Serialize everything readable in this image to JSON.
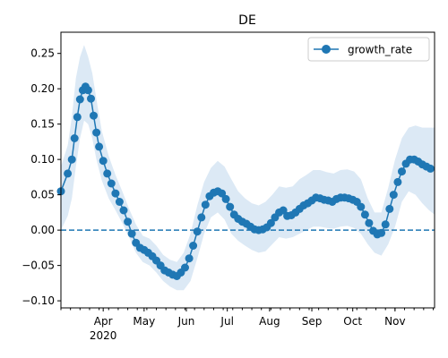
{
  "chart_data": {
    "type": "line",
    "title": "DE",
    "xlabel": "",
    "ylabel": "",
    "x_range": [
      "2020-03-01",
      "2020-11-30"
    ],
    "ylim": [
      -0.11,
      0.28
    ],
    "y_ticks": [
      -0.1,
      -0.05,
      0.0,
      0.05,
      0.1,
      0.15,
      0.2,
      0.25
    ],
    "y_tick_labels": [
      "−0.10",
      "−0.05",
      "0.00",
      "0.05",
      "0.10",
      "0.15",
      "0.20",
      "0.25"
    ],
    "x_major_ticks": [
      {
        "date": "2020-04-01",
        "label": "Apr"
      },
      {
        "date": "2020-05-01",
        "label": "May"
      },
      {
        "date": "2020-06-01",
        "label": "Jun"
      },
      {
        "date": "2020-07-01",
        "label": "Jul"
      },
      {
        "date": "2020-08-01",
        "label": "Aug"
      },
      {
        "date": "2020-09-01",
        "label": "Sep"
      },
      {
        "date": "2020-10-01",
        "label": "Oct"
      },
      {
        "date": "2020-11-01",
        "label": "Nov"
      }
    ],
    "x_year_label": "2020",
    "grid": false,
    "legend": {
      "position": "upper-right",
      "entries": [
        "growth_rate"
      ]
    },
    "colors": {
      "series": "#1f77b4",
      "band": "#dce9f5",
      "zero_line": "#1f77b4"
    },
    "reference_line": {
      "y": 0,
      "style": "dashed"
    },
    "series": [
      {
        "name": "growth_rate",
        "marker": "circle",
        "points": [
          [
            "2020-03-01",
            0.055
          ],
          [
            "2020-03-06",
            0.08
          ],
          [
            "2020-03-09",
            0.1
          ],
          [
            "2020-03-11",
            0.13
          ],
          [
            "2020-03-13",
            0.16
          ],
          [
            "2020-03-15",
            0.185
          ],
          [
            "2020-03-17",
            0.198
          ],
          [
            "2020-03-19",
            0.203
          ],
          [
            "2020-03-21",
            0.198
          ],
          [
            "2020-03-23",
            0.186
          ],
          [
            "2020-03-25",
            0.162
          ],
          [
            "2020-03-27",
            0.138
          ],
          [
            "2020-03-29",
            0.118
          ],
          [
            "2020-04-01",
            0.098
          ],
          [
            "2020-04-04",
            0.08
          ],
          [
            "2020-04-07",
            0.066
          ],
          [
            "2020-04-10",
            0.052
          ],
          [
            "2020-04-13",
            0.04
          ],
          [
            "2020-04-16",
            0.028
          ],
          [
            "2020-04-19",
            0.012
          ],
          [
            "2020-04-22",
            -0.005
          ],
          [
            "2020-04-25",
            -0.018
          ],
          [
            "2020-04-28",
            -0.025
          ],
          [
            "2020-05-01",
            -0.028
          ],
          [
            "2020-05-04",
            -0.032
          ],
          [
            "2020-05-07",
            -0.037
          ],
          [
            "2020-05-10",
            -0.043
          ],
          [
            "2020-05-13",
            -0.05
          ],
          [
            "2020-05-16",
            -0.057
          ],
          [
            "2020-05-19",
            -0.06
          ],
          [
            "2020-05-22",
            -0.063
          ],
          [
            "2020-05-25",
            -0.065
          ],
          [
            "2020-05-28",
            -0.06
          ],
          [
            "2020-05-31",
            -0.053
          ],
          [
            "2020-06-03",
            -0.04
          ],
          [
            "2020-06-06",
            -0.022
          ],
          [
            "2020-06-09",
            -0.002
          ],
          [
            "2020-06-12",
            0.018
          ],
          [
            "2020-06-15",
            0.036
          ],
          [
            "2020-06-18",
            0.048
          ],
          [
            "2020-06-21",
            0.053
          ],
          [
            "2020-06-24",
            0.055
          ],
          [
            "2020-06-27",
            0.052
          ],
          [
            "2020-06-30",
            0.044
          ],
          [
            "2020-07-03",
            0.033
          ],
          [
            "2020-07-06",
            0.022
          ],
          [
            "2020-07-09",
            0.016
          ],
          [
            "2020-07-12",
            0.012
          ],
          [
            "2020-07-15",
            0.009
          ],
          [
            "2020-07-18",
            0.005
          ],
          [
            "2020-07-21",
            0.001
          ],
          [
            "2020-07-24",
            0.0
          ],
          [
            "2020-07-27",
            0.001
          ],
          [
            "2020-07-30",
            0.004
          ],
          [
            "2020-08-02",
            0.01
          ],
          [
            "2020-08-05",
            0.018
          ],
          [
            "2020-08-08",
            0.025
          ],
          [
            "2020-08-11",
            0.028
          ],
          [
            "2020-08-14",
            0.02
          ],
          [
            "2020-08-17",
            0.021
          ],
          [
            "2020-08-20",
            0.025
          ],
          [
            "2020-08-23",
            0.03
          ],
          [
            "2020-08-26",
            0.035
          ],
          [
            "2020-08-29",
            0.038
          ],
          [
            "2020-09-01",
            0.042
          ],
          [
            "2020-09-04",
            0.046
          ],
          [
            "2020-09-07",
            0.045
          ],
          [
            "2020-09-10",
            0.043
          ],
          [
            "2020-09-13",
            0.042
          ],
          [
            "2020-09-16",
            0.04
          ],
          [
            "2020-09-19",
            0.044
          ],
          [
            "2020-09-22",
            0.046
          ],
          [
            "2020-09-25",
            0.046
          ],
          [
            "2020-09-28",
            0.045
          ],
          [
            "2020-10-01",
            0.043
          ],
          [
            "2020-10-04",
            0.04
          ],
          [
            "2020-10-07",
            0.033
          ],
          [
            "2020-10-10",
            0.022
          ],
          [
            "2020-10-13",
            0.01
          ],
          [
            "2020-10-16",
            -0.001
          ],
          [
            "2020-10-19",
            -0.006
          ],
          [
            "2020-10-22",
            -0.004
          ],
          [
            "2020-10-25",
            0.008
          ],
          [
            "2020-10-28",
            0.03
          ],
          [
            "2020-10-31",
            0.05
          ],
          [
            "2020-11-03",
            0.068
          ],
          [
            "2020-11-06",
            0.083
          ],
          [
            "2020-11-09",
            0.094
          ],
          [
            "2020-11-12",
            0.1
          ],
          [
            "2020-11-15",
            0.1
          ],
          [
            "2020-11-18",
            0.097
          ],
          [
            "2020-11-21",
            0.093
          ],
          [
            "2020-11-24",
            0.09
          ],
          [
            "2020-11-27",
            0.087
          ]
        ],
        "interval": [
          [
            "2020-03-01",
            0.0,
            0.09
          ],
          [
            "2020-03-06",
            0.02,
            0.12
          ],
          [
            "2020-03-09",
            0.045,
            0.16
          ],
          [
            "2020-03-12",
            0.09,
            0.215
          ],
          [
            "2020-03-15",
            0.13,
            0.245
          ],
          [
            "2020-03-18",
            0.155,
            0.262
          ],
          [
            "2020-03-21",
            0.15,
            0.245
          ],
          [
            "2020-03-24",
            0.13,
            0.222
          ],
          [
            "2020-03-27",
            0.1,
            0.185
          ],
          [
            "2020-03-31",
            0.07,
            0.14
          ],
          [
            "2020-04-05",
            0.045,
            0.105
          ],
          [
            "2020-04-10",
            0.028,
            0.078
          ],
          [
            "2020-04-15",
            0.01,
            0.055
          ],
          [
            "2020-04-20",
            -0.01,
            0.03
          ],
          [
            "2020-04-25",
            -0.032,
            0.008
          ],
          [
            "2020-04-30",
            -0.045,
            -0.008
          ],
          [
            "2020-05-05",
            -0.05,
            -0.012
          ],
          [
            "2020-05-10",
            -0.06,
            -0.022
          ],
          [
            "2020-05-15",
            -0.072,
            -0.035
          ],
          [
            "2020-05-20",
            -0.08,
            -0.042
          ],
          [
            "2020-05-25",
            -0.085,
            -0.045
          ],
          [
            "2020-05-30",
            -0.085,
            -0.032
          ],
          [
            "2020-06-04",
            -0.072,
            -0.005
          ],
          [
            "2020-06-09",
            -0.04,
            0.035
          ],
          [
            "2020-06-14",
            -0.005,
            0.068
          ],
          [
            "2020-06-19",
            0.018,
            0.088
          ],
          [
            "2020-06-24",
            0.025,
            0.098
          ],
          [
            "2020-06-29",
            0.015,
            0.09
          ],
          [
            "2020-07-04",
            -0.005,
            0.072
          ],
          [
            "2020-07-09",
            -0.015,
            0.055
          ],
          [
            "2020-07-14",
            -0.022,
            0.045
          ],
          [
            "2020-07-19",
            -0.028,
            0.038
          ],
          [
            "2020-07-24",
            -0.032,
            0.035
          ],
          [
            "2020-07-29",
            -0.03,
            0.04
          ],
          [
            "2020-08-03",
            -0.02,
            0.05
          ],
          [
            "2020-08-08",
            -0.01,
            0.062
          ],
          [
            "2020-08-13",
            -0.012,
            0.06
          ],
          [
            "2020-08-18",
            -0.01,
            0.062
          ],
          [
            "2020-08-23",
            -0.005,
            0.072
          ],
          [
            "2020-08-28",
            0.0,
            0.078
          ],
          [
            "2020-09-02",
            0.005,
            0.085
          ],
          [
            "2020-09-07",
            0.005,
            0.085
          ],
          [
            "2020-09-12",
            0.003,
            0.082
          ],
          [
            "2020-09-17",
            0.002,
            0.08
          ],
          [
            "2020-09-22",
            0.005,
            0.085
          ],
          [
            "2020-09-27",
            0.006,
            0.086
          ],
          [
            "2020-10-02",
            0.003,
            0.083
          ],
          [
            "2020-10-07",
            -0.005,
            0.072
          ],
          [
            "2020-10-12",
            -0.02,
            0.045
          ],
          [
            "2020-10-17",
            -0.032,
            0.025
          ],
          [
            "2020-10-22",
            -0.036,
            0.025
          ],
          [
            "2020-10-27",
            -0.02,
            0.06
          ],
          [
            "2020-11-01",
            0.005,
            0.1
          ],
          [
            "2020-11-06",
            0.04,
            0.13
          ],
          [
            "2020-11-11",
            0.055,
            0.145
          ],
          [
            "2020-11-16",
            0.05,
            0.148
          ],
          [
            "2020-11-21",
            0.038,
            0.145
          ],
          [
            "2020-11-26",
            0.028,
            0.145
          ],
          [
            "2020-11-30",
            0.022,
            0.145
          ]
        ]
      }
    ]
  }
}
